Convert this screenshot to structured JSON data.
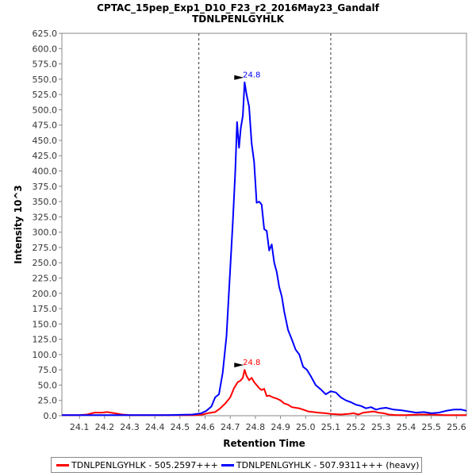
{
  "chart_data": {
    "type": "line",
    "title": "CPTAC_15pep_Exp1_D10_F23_r2_2016May23_Gandalf",
    "subtitle": "TDNLPENLGYHLK",
    "xlabel": "Retention Time",
    "ylabel": "Intensity 10^3",
    "xlim": [
      24.03,
      25.64
    ],
    "ylim": [
      0,
      625
    ],
    "x_ticks": [
      "24.1",
      "24.2",
      "24.3",
      "24.4",
      "24.5",
      "24.6",
      "24.7",
      "24.8",
      "24.9",
      "25.0",
      "25.1",
      "25.2",
      "25.3",
      "25.4",
      "25.5",
      "25.6"
    ],
    "y_ticks": [
      "0.0",
      "25.0",
      "50.0",
      "75.0",
      "100.0",
      "125.0",
      "150.0",
      "175.0",
      "200.0",
      "225.0",
      "250.0",
      "275.0",
      "300.0",
      "325.0",
      "350.0",
      "375.0",
      "400.0",
      "425.0",
      "450.0",
      "475.0",
      "500.0",
      "525.0",
      "550.0",
      "575.0",
      "600.0",
      "625.0"
    ],
    "boundaries": [
      24.575,
      25.1
    ],
    "legend_position": "bottom",
    "series": [
      {
        "name": "TDNLPENLGYHLK - 505.2597+++",
        "color": "#ff0000",
        "peak_label": "24.8",
        "peak_x": 24.757,
        "peak_y": 75,
        "points": [
          [
            24.03,
            1
          ],
          [
            24.1,
            1
          ],
          [
            24.13,
            2
          ],
          [
            24.16,
            5
          ],
          [
            24.19,
            5
          ],
          [
            24.21,
            6
          ],
          [
            24.24,
            4
          ],
          [
            24.27,
            2
          ],
          [
            24.3,
            1
          ],
          [
            24.4,
            1
          ],
          [
            24.5,
            1
          ],
          [
            24.56,
            1
          ],
          [
            24.59,
            2
          ],
          [
            24.61,
            4
          ],
          [
            24.64,
            6
          ],
          [
            24.66,
            12
          ],
          [
            24.68,
            20
          ],
          [
            24.7,
            30
          ],
          [
            24.715,
            45
          ],
          [
            24.73,
            55
          ],
          [
            24.74,
            57
          ],
          [
            24.75,
            62
          ],
          [
            24.757,
            75
          ],
          [
            24.765,
            65
          ],
          [
            24.775,
            58
          ],
          [
            24.785,
            62
          ],
          [
            24.795,
            55
          ],
          [
            24.805,
            50
          ],
          [
            24.815,
            45
          ],
          [
            24.825,
            42
          ],
          [
            24.835,
            44
          ],
          [
            24.845,
            32
          ],
          [
            24.855,
            33
          ],
          [
            24.87,
            30
          ],
          [
            24.885,
            28
          ],
          [
            24.9,
            25
          ],
          [
            24.915,
            20
          ],
          [
            24.93,
            18
          ],
          [
            24.945,
            14
          ],
          [
            24.96,
            13
          ],
          [
            24.975,
            12
          ],
          [
            24.99,
            10
          ],
          [
            25.01,
            7
          ],
          [
            25.03,
            6
          ],
          [
            25.05,
            5
          ],
          [
            25.08,
            4
          ],
          [
            25.1,
            3
          ],
          [
            25.14,
            2
          ],
          [
            25.17,
            3
          ],
          [
            25.19,
            4
          ],
          [
            25.21,
            2
          ],
          [
            25.23,
            5
          ],
          [
            25.25,
            6
          ],
          [
            25.27,
            7
          ],
          [
            25.29,
            5
          ],
          [
            25.31,
            4
          ],
          [
            25.33,
            2
          ],
          [
            25.36,
            1
          ],
          [
            25.4,
            1
          ],
          [
            25.45,
            2
          ],
          [
            25.5,
            2
          ],
          [
            25.55,
            1
          ],
          [
            25.6,
            1
          ],
          [
            25.64,
            1
          ]
        ]
      },
      {
        "name": "TDNLPENLGYHLK - 507.9311+++ (heavy)",
        "color": "#0000ff",
        "peak_label": "24.8",
        "peak_x": 24.757,
        "peak_y": 545,
        "points": [
          [
            24.03,
            1
          ],
          [
            24.2,
            1
          ],
          [
            24.3,
            1
          ],
          [
            24.45,
            1
          ],
          [
            24.55,
            2
          ],
          [
            24.585,
            4
          ],
          [
            24.605,
            8
          ],
          [
            24.625,
            15
          ],
          [
            24.64,
            30
          ],
          [
            24.655,
            35
          ],
          [
            24.67,
            70
          ],
          [
            24.685,
            130
          ],
          [
            24.7,
            240
          ],
          [
            24.71,
            315
          ],
          [
            24.72,
            400
          ],
          [
            24.727,
            480
          ],
          [
            24.735,
            438
          ],
          [
            24.742,
            470
          ],
          [
            24.75,
            490
          ],
          [
            24.757,
            545
          ],
          [
            24.765,
            525
          ],
          [
            24.775,
            505
          ],
          [
            24.785,
            445
          ],
          [
            24.795,
            415
          ],
          [
            24.805,
            348
          ],
          [
            24.815,
            350
          ],
          [
            24.825,
            345
          ],
          [
            24.835,
            305
          ],
          [
            24.845,
            302
          ],
          [
            24.855,
            270
          ],
          [
            24.865,
            280
          ],
          [
            24.875,
            250
          ],
          [
            24.885,
            235
          ],
          [
            24.895,
            210
          ],
          [
            24.905,
            195
          ],
          [
            24.915,
            170
          ],
          [
            24.93,
            140
          ],
          [
            24.945,
            125
          ],
          [
            24.96,
            108
          ],
          [
            24.975,
            100
          ],
          [
            24.99,
            80
          ],
          [
            25.005,
            75
          ],
          [
            25.02,
            65
          ],
          [
            25.04,
            50
          ],
          [
            25.06,
            43
          ],
          [
            25.08,
            35
          ],
          [
            25.1,
            40
          ],
          [
            25.12,
            38
          ],
          [
            25.14,
            30
          ],
          [
            25.16,
            25
          ],
          [
            25.18,
            22
          ],
          [
            25.2,
            18
          ],
          [
            25.22,
            16
          ],
          [
            25.24,
            12
          ],
          [
            25.26,
            14
          ],
          [
            25.28,
            10
          ],
          [
            25.3,
            12
          ],
          [
            25.32,
            13
          ],
          [
            25.35,
            10
          ],
          [
            25.38,
            9
          ],
          [
            25.41,
            7
          ],
          [
            25.44,
            5
          ],
          [
            25.47,
            6
          ],
          [
            25.5,
            4
          ],
          [
            25.53,
            5
          ],
          [
            25.56,
            8
          ],
          [
            25.59,
            10
          ],
          [
            25.62,
            10
          ],
          [
            25.64,
            8
          ]
        ]
      }
    ]
  }
}
